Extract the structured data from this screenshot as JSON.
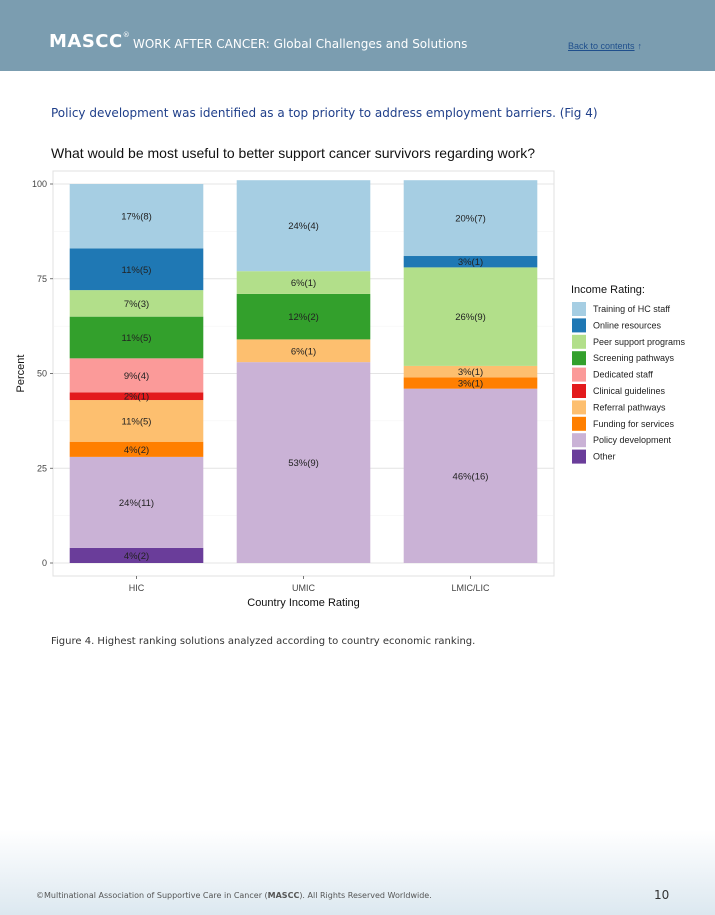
{
  "header": {
    "brand": "MASCC",
    "brand_mark": "®",
    "subtitle": "WORK AFTER CANCER: Global Challenges and Solutions",
    "back_link": "Back to contents",
    "back_arrow": "↑"
  },
  "intro": "Policy development was identified as a top priority to address employment barriers. (Fig 4)",
  "caption": "Figure 4.  Highest ranking solutions analyzed according to country economic ranking.",
  "footer": {
    "text_pre": "©Multinational Association of Supportive Care in Cancer (",
    "text_brand": "MASCC",
    "text_post": "). All Rights Reserved Worldwide.",
    "page": "10"
  },
  "chart_data": {
    "type": "bar",
    "stacked": true,
    "title": "What would be most useful to better support cancer survivors regarding work?",
    "xlabel": "Country Income Rating",
    "ylabel": "Percent",
    "ylim": [
      0,
      100
    ],
    "yticks": [
      0,
      25,
      50,
      75,
      100
    ],
    "grid": true,
    "legend_title": "Income Rating:",
    "legend_position": "right",
    "categories": [
      "HIC",
      "UMIC",
      "LMIC/LIC"
    ],
    "series": [
      {
        "name": "Other",
        "color": "#6a3d9a",
        "values": [
          4,
          0,
          0
        ],
        "labels": [
          "4%(2)",
          "",
          ""
        ]
      },
      {
        "name": "Policy development",
        "color": "#cab2d6",
        "values": [
          24,
          53,
          46
        ],
        "labels": [
          "24%(11)",
          "53%(9)",
          "46%(16)"
        ]
      },
      {
        "name": "Funding for services",
        "color": "#ff7f00",
        "values": [
          4,
          0,
          3
        ],
        "labels": [
          "4%(2)",
          "",
          "3%(1)"
        ]
      },
      {
        "name": "Referral pathways",
        "color": "#fdbf6f",
        "values": [
          11,
          6,
          3
        ],
        "labels": [
          "11%(5)",
          "6%(1)",
          "3%(1)"
        ]
      },
      {
        "name": "Clinical guidelines",
        "color": "#e31a1c",
        "values": [
          2,
          0,
          0
        ],
        "labels": [
          "2%(1)",
          "",
          ""
        ]
      },
      {
        "name": "Dedicated staff",
        "color": "#fb9a99",
        "values": [
          9,
          0,
          0
        ],
        "labels": [
          "9%(4)",
          "",
          ""
        ]
      },
      {
        "name": "Screening pathways",
        "color": "#33a02c",
        "values": [
          11,
          12,
          0
        ],
        "labels": [
          "11%(5)",
          "12%(2)",
          ""
        ]
      },
      {
        "name": "Peer support programs",
        "color": "#b2df8a",
        "values": [
          7,
          6,
          26
        ],
        "labels": [
          "7%(3)",
          "6%(1)",
          "26%(9)"
        ]
      },
      {
        "name": "Online resources",
        "color": "#1f78b4",
        "values": [
          11,
          0,
          3
        ],
        "labels": [
          "11%(5)",
          "",
          "3%(1)"
        ]
      },
      {
        "name": "Training of HC staff",
        "color": "#a6cee3",
        "values": [
          17,
          24,
          20
        ],
        "labels": [
          "17%(8)",
          "24%(4)",
          "20%(7)"
        ]
      }
    ],
    "legend_order": [
      "Training of HC staff",
      "Online resources",
      "Peer support programs",
      "Screening pathways",
      "Dedicated staff",
      "Clinical guidelines",
      "Referral pathways",
      "Funding for services",
      "Policy development",
      "Other"
    ]
  }
}
